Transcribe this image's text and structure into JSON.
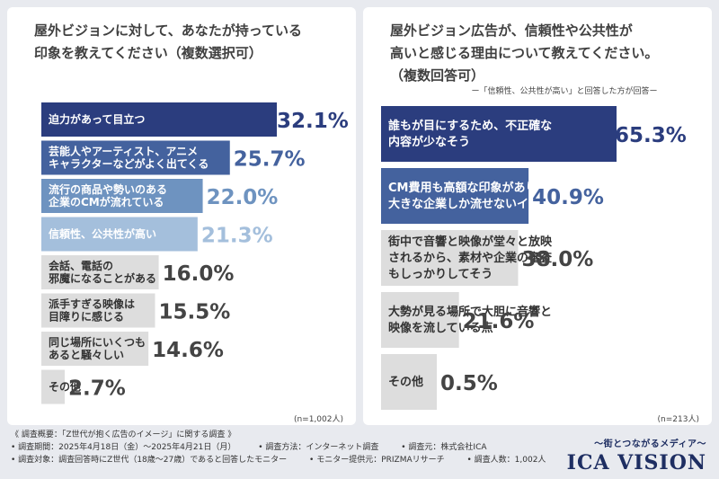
{
  "left_panel": {
    "title": "屋外ビジョンに対して、あなたが持っている\n印象を教えてください（複数選択可）",
    "n_label": "(n=1,002人)"
  },
  "right_panel": {
    "title": "屋外ビジョン広告が、信頼性や公共性が\n高いと感じる理由について教えてください。\n（複数回答可）",
    "subnote": "ー「信頼性、公共性が高い」と回答した方が回答ー",
    "n_label": "(n=213人)"
  },
  "footer": {
    "line1": "《 調査概要：「Z世代が抱く広告のイメージ」に関する調査 》",
    "period": "• 調査期間：2025年4月18日（金）～2025年4月21日（月）",
    "method": "• 調査方法：インターネット調査",
    "source": "• 調査元：株式会社ICA",
    "target": "• 調査対象：調査回答時にZ世代（18歳～27歳）であると回答したモニター",
    "provider": "• モニター提供元：PRIZMAリサーチ",
    "count": "• 調査人数：1,002人"
  },
  "brand": {
    "tagline": "～街とつながるメディア～",
    "logo": "ICA VISION"
  },
  "chart_data": [
    {
      "type": "bar",
      "orientation": "horizontal",
      "unit": "%",
      "categories": [
        "迫力があって目立つ",
        "芸能人やアーティスト、アニメ\nキャラクターなどがよく出てくる",
        "流行の商品や勢いのある\n企業のCMが流れている",
        "信頼性、公共性が高い",
        "会話、電話の\n邪魔になることがある",
        "派手すぎる映像は\n目障りに感じる",
        "同じ場所にいくつも\nあると騒々しい",
        "その他"
      ],
      "values": [
        32.1,
        25.7,
        22.0,
        21.3,
        16.0,
        15.5,
        14.6,
        2.7
      ],
      "value_labels": [
        "32.1%",
        "25.7%",
        "22.0%",
        "21.3%",
        "16.0%",
        "15.5%",
        "14.6%",
        "2.7%"
      ],
      "colors": [
        "#2b3d7e",
        "#44629e",
        "#6e93c0",
        "#a4bfdc",
        "#dddddd",
        "#dddddd",
        "#dddddd",
        "#dddddd"
      ],
      "text_colors": [
        "#ffffff",
        "#ffffff",
        "#ffffff",
        "#ffffff",
        "#333333",
        "#333333",
        "#333333",
        "#333333"
      ],
      "value_colors": [
        "#2b3d7e",
        "#44629e",
        "#6e93c0",
        "#a4bfdc",
        "#444444",
        "#444444",
        "#444444",
        "#444444"
      ]
    },
    {
      "type": "bar",
      "orientation": "horizontal",
      "unit": "%",
      "categories": [
        "誰もが目にするため、不正確な\n内容が少なそう",
        "CM費用も高額な印象があり、\n大きな企業しか流せないイメージ",
        "街中で音響と映像が堂々と放映\nされるから、素材や企業の審査\nもしっかりしてそう",
        "大勢が見る場所で大胆に音響と\n映像を流している点",
        "その他"
      ],
      "values": [
        65.3,
        40.9,
        38.0,
        21.6,
        0.5
      ],
      "value_labels": [
        "65.3%",
        "40.9%",
        "38.0%",
        "21.6%",
        "0.5%"
      ],
      "colors": [
        "#2b3d7e",
        "#44629e",
        "#dddddd",
        "#dddddd",
        "#dddddd"
      ],
      "text_colors": [
        "#ffffff",
        "#ffffff",
        "#333333",
        "#333333",
        "#333333"
      ],
      "value_colors": [
        "#2b3d7e",
        "#44629e",
        "#444444",
        "#444444",
        "#444444"
      ]
    }
  ]
}
